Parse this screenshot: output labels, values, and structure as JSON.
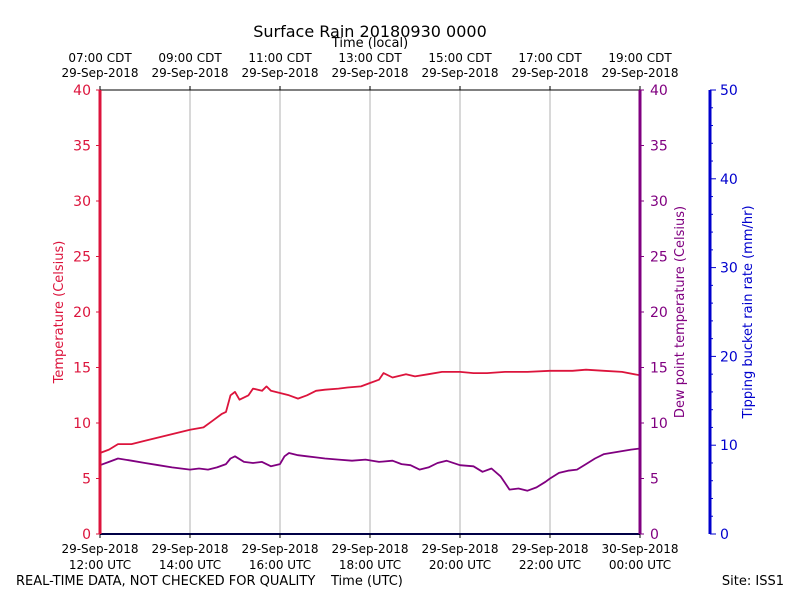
{
  "chart_data": {
    "type": "line",
    "title": "Surface Rain 20180930 0000",
    "top_axis_label": "Time (local)",
    "xlabel": "Time (UTC)",
    "ylabel_left": "Temperature (Celsius)",
    "ylabel_right": "Dew point temperature (Celsius)",
    "ylabel_rain": "Tipping bucket rain rate (mm/hr)",
    "xlim_hours_utc": [
      12,
      24
    ],
    "ylim_temp": [
      0,
      40
    ],
    "ylim_rain": [
      0,
      50
    ],
    "temp_ticks": [
      0,
      5,
      10,
      15,
      20,
      25,
      30,
      35,
      40
    ],
    "rain_ticks": [
      0,
      10,
      20,
      30,
      40,
      50
    ],
    "grid": "vertical",
    "bottom_ticks": [
      {
        "hour": 12,
        "date": "29-Sep-2018",
        "time": "12:00 UTC"
      },
      {
        "hour": 14,
        "date": "29-Sep-2018",
        "time": "14:00 UTC"
      },
      {
        "hour": 16,
        "date": "29-Sep-2018",
        "time": "16:00 UTC"
      },
      {
        "hour": 18,
        "date": "29-Sep-2018",
        "time": "18:00 UTC"
      },
      {
        "hour": 20,
        "date": "29-Sep-2018",
        "time": "20:00 UTC"
      },
      {
        "hour": 22,
        "date": "29-Sep-2018",
        "time": "22:00 UTC"
      },
      {
        "hour": 24,
        "date": "30-Sep-2018",
        "time": "00:00 UTC"
      }
    ],
    "top_ticks": [
      {
        "hour": 12,
        "time": "07:00 CDT",
        "date": "29-Sep-2018"
      },
      {
        "hour": 14,
        "time": "09:00 CDT",
        "date": "29-Sep-2018"
      },
      {
        "hour": 16,
        "time": "11:00 CDT",
        "date": "29-Sep-2018"
      },
      {
        "hour": 18,
        "time": "13:00 CDT",
        "date": "29-Sep-2018"
      },
      {
        "hour": 20,
        "time": "15:00 CDT",
        "date": "29-Sep-2018"
      },
      {
        "hour": 22,
        "time": "17:00 CDT",
        "date": "29-Sep-2018"
      },
      {
        "hour": 24,
        "time": "19:00 CDT",
        "date": "29-Sep-2018"
      }
    ],
    "series": [
      {
        "name": "Temperature",
        "color": "#dc143c",
        "points": [
          [
            12.0,
            7.3
          ],
          [
            12.2,
            7.6
          ],
          [
            12.4,
            8.1
          ],
          [
            12.7,
            8.1
          ],
          [
            13.0,
            8.4
          ],
          [
            13.5,
            8.9
          ],
          [
            14.0,
            9.4
          ],
          [
            14.3,
            9.6
          ],
          [
            14.5,
            10.2
          ],
          [
            14.7,
            10.8
          ],
          [
            14.8,
            11.0
          ],
          [
            14.9,
            12.5
          ],
          [
            15.0,
            12.8
          ],
          [
            15.1,
            12.1
          ],
          [
            15.3,
            12.5
          ],
          [
            15.4,
            13.1
          ],
          [
            15.6,
            12.9
          ],
          [
            15.7,
            13.3
          ],
          [
            15.8,
            12.9
          ],
          [
            16.0,
            12.7
          ],
          [
            16.2,
            12.5
          ],
          [
            16.4,
            12.2
          ],
          [
            16.6,
            12.5
          ],
          [
            16.8,
            12.9
          ],
          [
            17.0,
            13.0
          ],
          [
            17.3,
            13.1
          ],
          [
            17.5,
            13.2
          ],
          [
            17.8,
            13.3
          ],
          [
            18.0,
            13.6
          ],
          [
            18.2,
            13.9
          ],
          [
            18.3,
            14.5
          ],
          [
            18.5,
            14.1
          ],
          [
            18.8,
            14.4
          ],
          [
            19.0,
            14.2
          ],
          [
            19.3,
            14.4
          ],
          [
            19.6,
            14.6
          ],
          [
            20.0,
            14.6
          ],
          [
            20.3,
            14.5
          ],
          [
            20.6,
            14.5
          ],
          [
            21.0,
            14.6
          ],
          [
            21.5,
            14.6
          ],
          [
            22.0,
            14.7
          ],
          [
            22.5,
            14.7
          ],
          [
            22.8,
            14.8
          ],
          [
            23.2,
            14.7
          ],
          [
            23.6,
            14.6
          ],
          [
            24.0,
            14.3
          ]
        ]
      },
      {
        "name": "Dew point",
        "color": "#800080",
        "points": [
          [
            12.0,
            6.2
          ],
          [
            12.2,
            6.5
          ],
          [
            12.4,
            6.8
          ],
          [
            12.7,
            6.6
          ],
          [
            13.0,
            6.4
          ],
          [
            13.3,
            6.2
          ],
          [
            13.6,
            6.0
          ],
          [
            14.0,
            5.8
          ],
          [
            14.2,
            5.9
          ],
          [
            14.4,
            5.8
          ],
          [
            14.6,
            6.0
          ],
          [
            14.8,
            6.3
          ],
          [
            14.9,
            6.8
          ],
          [
            15.0,
            7.0
          ],
          [
            15.2,
            6.5
          ],
          [
            15.4,
            6.4
          ],
          [
            15.6,
            6.5
          ],
          [
            15.8,
            6.1
          ],
          [
            16.0,
            6.3
          ],
          [
            16.1,
            7.0
          ],
          [
            16.2,
            7.3
          ],
          [
            16.4,
            7.1
          ],
          [
            16.6,
            7.0
          ],
          [
            16.8,
            6.9
          ],
          [
            17.0,
            6.8
          ],
          [
            17.3,
            6.7
          ],
          [
            17.6,
            6.6
          ],
          [
            17.9,
            6.7
          ],
          [
            18.2,
            6.5
          ],
          [
            18.5,
            6.6
          ],
          [
            18.7,
            6.3
          ],
          [
            18.9,
            6.2
          ],
          [
            19.1,
            5.8
          ],
          [
            19.3,
            6.0
          ],
          [
            19.5,
            6.4
          ],
          [
            19.7,
            6.6
          ],
          [
            20.0,
            6.2
          ],
          [
            20.3,
            6.1
          ],
          [
            20.5,
            5.6
          ],
          [
            20.7,
            5.9
          ],
          [
            20.9,
            5.2
          ],
          [
            21.0,
            4.6
          ],
          [
            21.1,
            4.0
          ],
          [
            21.3,
            4.1
          ],
          [
            21.5,
            3.9
          ],
          [
            21.7,
            4.2
          ],
          [
            21.9,
            4.7
          ],
          [
            22.0,
            5.0
          ],
          [
            22.2,
            5.5
          ],
          [
            22.4,
            5.7
          ],
          [
            22.6,
            5.8
          ],
          [
            22.8,
            6.3
          ],
          [
            23.0,
            6.8
          ],
          [
            23.2,
            7.2
          ],
          [
            23.5,
            7.4
          ],
          [
            23.8,
            7.6
          ],
          [
            24.0,
            7.7
          ]
        ]
      },
      {
        "name": "Tipping bucket rain rate",
        "color": "#00008b",
        "points": [
          [
            12.0,
            0
          ],
          [
            24.0,
            0
          ]
        ]
      }
    ],
    "colors": {
      "temp": "#dc143c",
      "dew": "#800080",
      "rain": "#0000cd",
      "grid": "#b0b0b0"
    }
  },
  "footer": {
    "left_note": "REAL-TIME DATA, NOT CHECKED FOR QUALITY",
    "xlabel": "Time (UTC)",
    "site": "Site: ISS1"
  }
}
